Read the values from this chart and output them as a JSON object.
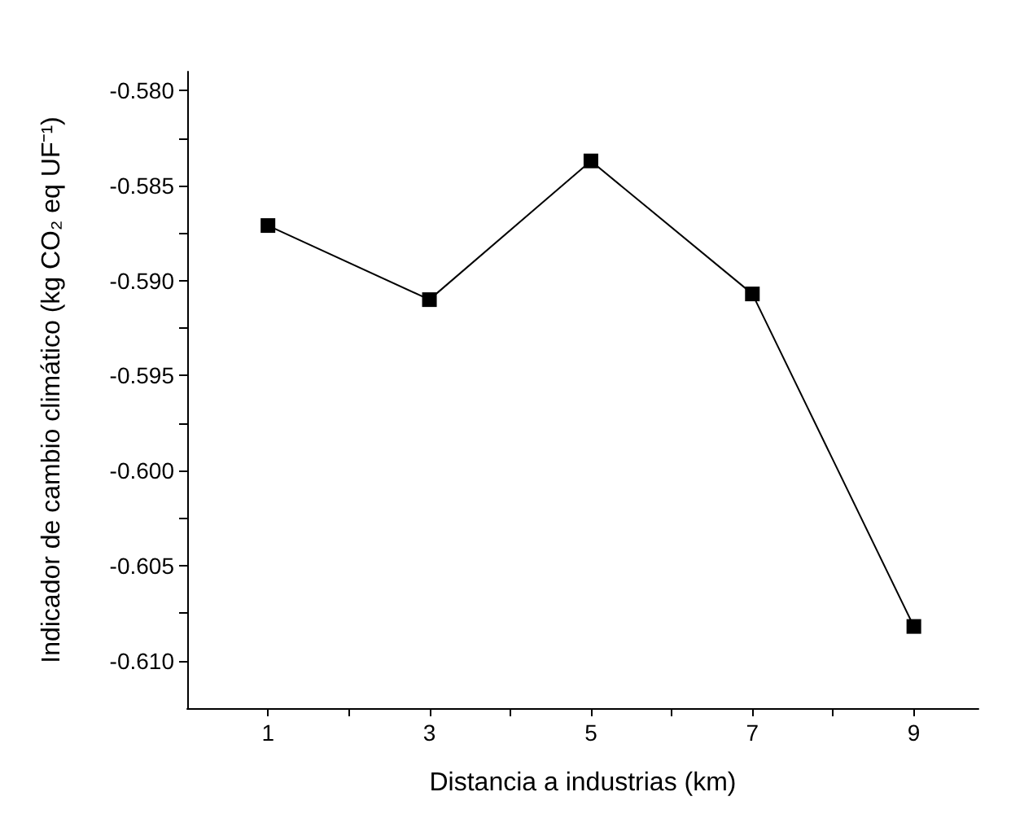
{
  "chart_data": {
    "type": "line",
    "xlabel": "Distancia a industrias (km)",
    "ylabel": "Indicador de cambio climático (kg CO₂ eq UF⁻¹)",
    "x": [
      1,
      3,
      5,
      7,
      9
    ],
    "series": [
      {
        "color": "#000000",
        "values": [
          -0.5871,
          -0.591,
          -0.5837,
          -0.5907,
          -0.6082
        ]
      }
    ],
    "xlim": [
      0,
      9.8
    ],
    "xticks": [
      1,
      {
        "value": 2,
        "label": null
      },
      3,
      {
        "value": 4,
        "label": null
      },
      5,
      {
        "value": 6,
        "label": null
      },
      7,
      {
        "value": 8,
        "label": null
      },
      9
    ],
    "ylim": [
      -0.6125,
      -0.579
    ],
    "yticks": [
      {
        "value": -0.58,
        "label": "-0.580"
      },
      {
        "value": -0.5825,
        "label": null
      },
      {
        "value": -0.585,
        "label": "-0.585"
      },
      {
        "value": -0.5875,
        "label": null
      },
      {
        "value": -0.59,
        "label": "-0.590"
      },
      {
        "value": -0.5925,
        "label": null
      },
      {
        "value": -0.595,
        "label": "-0.595"
      },
      {
        "value": -0.5975,
        "label": null
      },
      {
        "value": -0.6,
        "label": "-0.600"
      },
      {
        "value": -0.6025,
        "label": null
      },
      {
        "value": -0.605,
        "label": "-0.605"
      },
      {
        "value": -0.6075,
        "label": null
      },
      {
        "value": -0.61,
        "label": "-0.610"
      }
    ],
    "grid": false,
    "marker": "square",
    "line_style": "solid"
  }
}
